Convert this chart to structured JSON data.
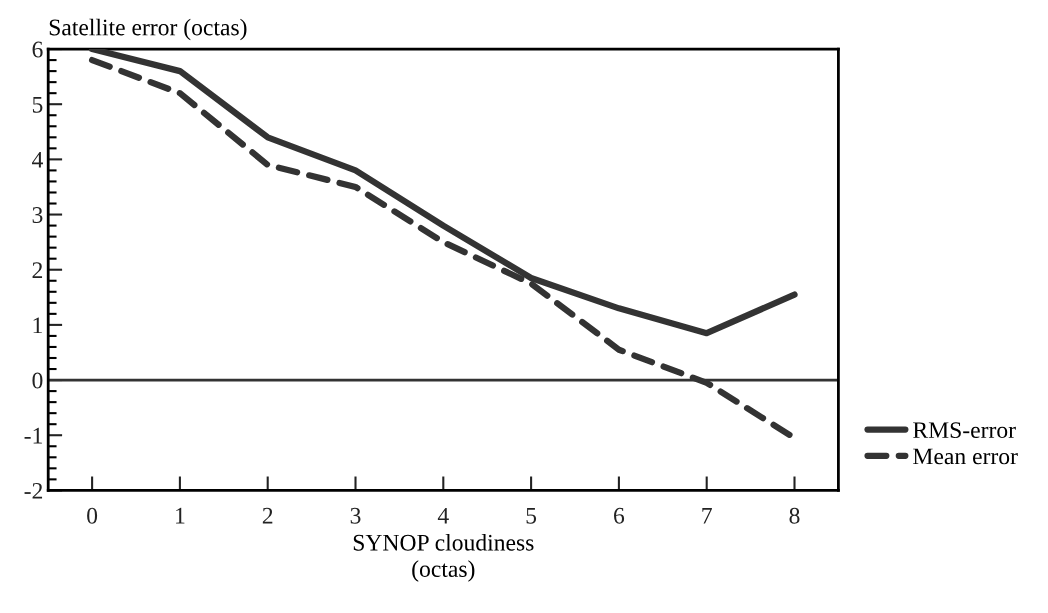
{
  "chart_data": {
    "type": "line",
    "xlabel": "SYNOP cloudiness\n(octas)",
    "ylabel": "Satellite error (octas)",
    "x": [
      0,
      1,
      2,
      3,
      4,
      5,
      6,
      7,
      8
    ],
    "series": [
      {
        "name": "RMS-error",
        "color": "#333333",
        "line_style": "solid",
        "values": [
          6.0,
          5.6,
          4.4,
          3.8,
          2.8,
          1.85,
          1.3,
          0.85,
          1.55
        ]
      },
      {
        "name": "Mean error",
        "color": "#333333",
        "line_style": "dashed",
        "values": [
          5.8,
          5.2,
          3.9,
          3.5,
          2.5,
          1.75,
          0.55,
          -0.05,
          -1.05
        ]
      }
    ],
    "xlim": [
      -0.5,
      8.5
    ],
    "xticks": [
      0,
      1,
      2,
      3,
      4,
      5,
      6,
      7,
      8
    ],
    "ylim": [
      -2,
      6
    ],
    "yticks": [
      -2,
      {
        "value": -1.8,
        "label": null
      },
      {
        "value": -1.6,
        "label": null
      },
      {
        "value": -1.4,
        "label": null
      },
      {
        "value": -1.2,
        "label": null
      },
      -1,
      {
        "value": -0.8,
        "label": null
      },
      {
        "value": -0.6,
        "label": null
      },
      {
        "value": -0.4,
        "label": null
      },
      {
        "value": -0.2,
        "label": null
      },
      0,
      {
        "value": 0.2,
        "label": null
      },
      {
        "value": 0.4,
        "label": null
      },
      {
        "value": 0.6,
        "label": null
      },
      {
        "value": 0.8,
        "label": null
      },
      1,
      {
        "value": 1.2,
        "label": null
      },
      {
        "value": 1.4,
        "label": null
      },
      {
        "value": 1.6,
        "label": null
      },
      {
        "value": 1.8,
        "label": null
      },
      2,
      {
        "value": 2.2,
        "label": null
      },
      {
        "value": 2.4,
        "label": null
      },
      {
        "value": 2.6,
        "label": null
      },
      {
        "value": 2.8,
        "label": null
      },
      3,
      {
        "value": 3.2,
        "label": null
      },
      {
        "value": 3.4,
        "label": null
      },
      {
        "value": 3.6,
        "label": null
      },
      {
        "value": 3.8,
        "label": null
      },
      4,
      {
        "value": 4.2,
        "label": null
      },
      {
        "value": 4.4,
        "label": null
      },
      {
        "value": 4.6,
        "label": null
      },
      {
        "value": 4.8,
        "label": null
      },
      5,
      {
        "value": 5.2,
        "label": null
      },
      {
        "value": 5.4,
        "label": null
      },
      {
        "value": 5.6,
        "label": null
      },
      {
        "value": 5.8,
        "label": null
      },
      6
    ],
    "ref_lines": [
      {
        "axis": "y",
        "value": 0,
        "color": "#333333"
      }
    ],
    "grid": false,
    "legend": "bottom right",
    "marker": "none"
  }
}
